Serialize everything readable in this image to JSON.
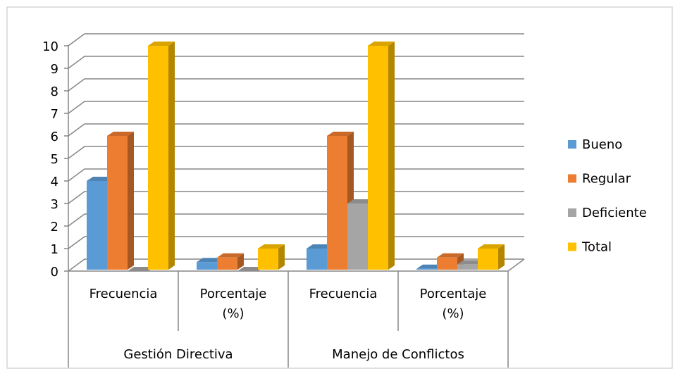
{
  "chart_data": {
    "type": "bar3d",
    "groups": [
      "Gestión Directiva",
      "Manejo de Conflictos"
    ],
    "categories": [
      "Frecuencia",
      "Porcentaje (%)",
      "Frecuencia",
      "Porcentaje (%)"
    ],
    "series": [
      {
        "name": "Bueno",
        "color": "#5b9bd5",
        "values": [
          4,
          0.4,
          1,
          0.1
        ]
      },
      {
        "name": "Regular",
        "color": "#ed7d31",
        "values": [
          6,
          0.6,
          6,
          0.6
        ]
      },
      {
        "name": "Deficiente",
        "color": "#a5a5a5",
        "values": [
          0,
          0,
          3,
          0.3
        ]
      },
      {
        "name": "Total",
        "color": "#ffc000",
        "values": [
          10,
          1,
          10,
          1
        ]
      }
    ],
    "ylim": [
      0,
      10
    ],
    "yticks": [
      0,
      1,
      2,
      3,
      4,
      5,
      6,
      7,
      8,
      9,
      10
    ],
    "grid": true,
    "legend": "right"
  }
}
